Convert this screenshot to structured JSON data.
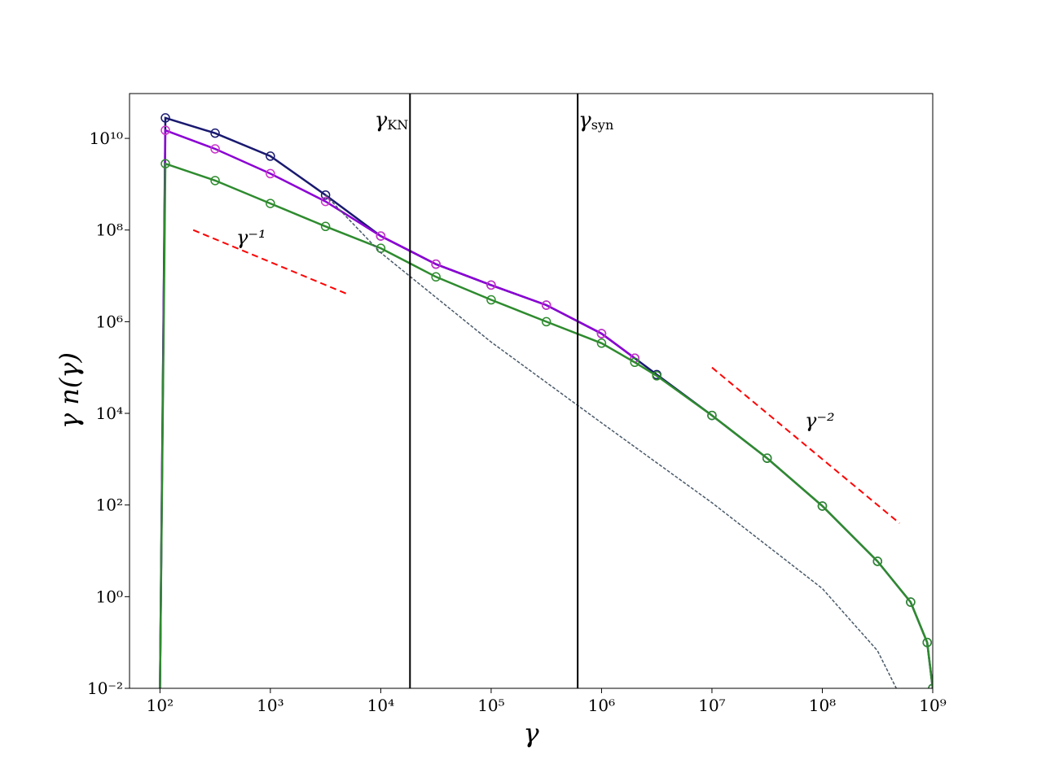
{
  "chart_data": {
    "type": "line",
    "xlabel": "γ",
    "ylabel": "γ n(γ)",
    "log_x": true,
    "log_y": true,
    "xlim": [
      53,
      1000000000
    ],
    "ylim": [
      0.01,
      95000000000
    ],
    "xticks": [
      {
        "value": 100,
        "label": "10²"
      },
      {
        "value": 1000,
        "label": "10³"
      },
      {
        "value": 10000,
        "label": "10⁴"
      },
      {
        "value": 100000,
        "label": "10⁵"
      },
      {
        "value": 1000000,
        "label": "10⁶"
      },
      {
        "value": 10000000,
        "label": "10⁷"
      },
      {
        "value": 100000000,
        "label": "10⁸"
      },
      {
        "value": 1000000000,
        "label": "10⁹"
      }
    ],
    "yticks": [
      {
        "value": 0.01,
        "label": "10⁻²"
      },
      {
        "value": 1,
        "label": "10⁰"
      },
      {
        "value": 100,
        "label": "10²"
      },
      {
        "value": 10000,
        "label": "10⁴"
      },
      {
        "value": 1000000,
        "label": "10⁶"
      },
      {
        "value": 100000000,
        "label": "10⁸"
      },
      {
        "value": 10000000000,
        "label": "10¹⁰"
      }
    ],
    "series": [
      {
        "color": "#191970",
        "marker_color": "#191970",
        "markers": true,
        "x": [
          100,
          112,
          316,
          1000,
          3162,
          10000,
          31623,
          100000,
          316228,
          1000000,
          2000000,
          3162278,
          10000000,
          31622777,
          100000000,
          316227766,
          630957344,
          891250938,
          1000000000
        ],
        "values": [
          0.01,
          28000000000,
          13000000000,
          4100000000,
          580000000,
          74000000,
          18000000,
          6300000,
          2300000,
          550000,
          160000,
          70000,
          9000,
          1050,
          95,
          5.9,
          0.76,
          0.1,
          0.01
        ]
      },
      {
        "color": "#8b00d4",
        "marker_color": "#cc33cc",
        "markers": true,
        "x": [
          100,
          112,
          316,
          1000,
          3162,
          10000,
          31623,
          100000,
          316228,
          1000000,
          2000000
        ],
        "values": [
          0.01,
          15000000000,
          5900000000,
          1700000000,
          420000000,
          74000000,
          18000000,
          6300000,
          2300000,
          550000,
          160000
        ]
      },
      {
        "color": "#2e8b2e",
        "marker_color": "#2e8b2e",
        "markers": true,
        "x": [
          100,
          112,
          316,
          1000,
          3162,
          10000,
          31623,
          100000,
          316228,
          1000000,
          2000000,
          3162278,
          10000000,
          31622777,
          100000000,
          316227766,
          630957344,
          891250938,
          1000000000
        ],
        "values": [
          0.01,
          2800000000,
          1200000000,
          380000000,
          120000000,
          40000000,
          9500000,
          3000000,
          1000000,
          340000,
          130000,
          66000,
          9000,
          1050,
          95,
          5.9,
          0.76,
          0.1,
          0.01
        ]
      },
      {
        "color": "#4a5a6a",
        "dashed": true,
        "markers": false,
        "x": [
          3162,
          10000,
          100000,
          1000000,
          10000000,
          100000000,
          316227766,
          467735141
        ],
        "values": [
          580000000,
          32000000,
          360000,
          6200,
          112,
          1.5,
          0.066,
          0.01
        ]
      }
    ],
    "reference_lines": [
      {
        "label": "γ⁻¹",
        "color": "#ff0000",
        "x": [
          200,
          5000
        ],
        "values": [
          100000000,
          4000000
        ]
      },
      {
        "label": "γ⁻²",
        "color": "#ff0000",
        "x": [
          10000000,
          500000000
        ],
        "values": [
          100000,
          40
        ]
      }
    ],
    "vlines": [
      {
        "value": 18400,
        "symbol": "γ",
        "subscript": "KN"
      },
      {
        "value": 608000,
        "symbol": "γ",
        "subscript": "syn"
      }
    ]
  }
}
